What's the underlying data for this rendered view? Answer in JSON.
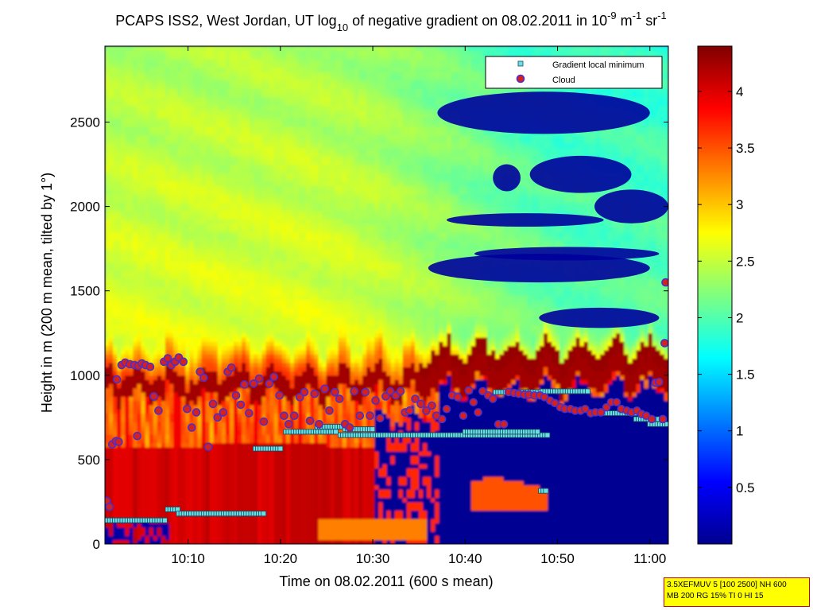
{
  "chart_data": {
    "type": "heatmap",
    "title": {
      "prefix": "PCAPS ISS2, West Jordan, UT log",
      "sub": "10",
      "middle": " of negative gradient on 08.02.2011 in 10",
      "exp1": "-9",
      "unit1": " m",
      "exp2": "-1",
      "unit2": " sr",
      "exp3": "-1"
    },
    "xlabel": "Time on 08.02.2011 (600 s mean)",
    "ylabel": "Height in m (200 m mean, tilted by 1°)",
    "x_ticks": [
      "10:10",
      "10:20",
      "10:30",
      "10:40",
      "10:50",
      "11:00"
    ],
    "x_tick_minutes": [
      10,
      20,
      30,
      40,
      50,
      60
    ],
    "xlim_minutes": [
      1,
      62
    ],
    "y_ticks": [
      0,
      500,
      1000,
      1500,
      2000,
      2500
    ],
    "ylim": [
      0,
      2950
    ],
    "colorbar": {
      "ticks": [
        0.5,
        1,
        1.5,
        2,
        2.5,
        3,
        3.5,
        4
      ],
      "range": [
        0,
        4.4
      ],
      "colormap": "jet"
    },
    "legend": {
      "position": "top-right",
      "entries": [
        "Gradient local minimum",
        "Cloud"
      ]
    },
    "series": [
      {
        "name": "Gradient local minimum",
        "marker": "square",
        "color": "#66e0e8",
        "edge": "#1a4a5a",
        "segments": [
          {
            "t0": 1.0,
            "t1": 7.5,
            "h": 140
          },
          {
            "t0": 7.8,
            "t1": 9.0,
            "h": 205
          },
          {
            "t0": 9.0,
            "t1": 18.2,
            "h": 180
          },
          {
            "t0": 17.3,
            "t1": 20.2,
            "h": 565
          },
          {
            "t0": 20.6,
            "t1": 26.0,
            "h": 665
          },
          {
            "t0": 24.0,
            "t1": 27.5,
            "h": 695
          },
          {
            "t0": 26.5,
            "t1": 49.0,
            "h": 645
          },
          {
            "t0": 27.0,
            "t1": 30.0,
            "h": 680
          },
          {
            "t0": 40.0,
            "t1": 48.0,
            "h": 665
          },
          {
            "t0": 43.3,
            "t1": 48.9,
            "h": 900
          },
          {
            "t0": 48.4,
            "t1": 53.5,
            "h": 905
          },
          {
            "t0": 53.5,
            "t1": 58.5,
            "h": 775
          },
          {
            "t0": 58.5,
            "t1": 61.0,
            "h": 740
          },
          {
            "t0": 60.0,
            "t1": 62.0,
            "h": 710
          },
          {
            "t0": 48.2,
            "t1": 48.8,
            "h": 315
          }
        ]
      },
      {
        "name": "Cloud",
        "marker": "circle",
        "color": "#d42020",
        "edge": "#4b2fc8",
        "points": [
          [
            1.2,
            255
          ],
          [
            1.5,
            220
          ],
          [
            1.8,
            590
          ],
          [
            2.2,
            610
          ],
          [
            2.5,
            605
          ],
          [
            2.8,
            1060
          ],
          [
            3.2,
            1075
          ],
          [
            3.7,
            1065
          ],
          [
            4.2,
            1060
          ],
          [
            4.6,
            1055
          ],
          [
            5.0,
            1070
          ],
          [
            5.4,
            1060
          ],
          [
            5.9,
            1050
          ],
          [
            4.5,
            640
          ],
          [
            2.3,
            975
          ],
          [
            6.3,
            875
          ],
          [
            6.8,
            790
          ],
          [
            7.4,
            1080
          ],
          [
            7.8,
            1100
          ],
          [
            8.2,
            1060
          ],
          [
            8.6,
            1080
          ],
          [
            9.0,
            1105
          ],
          [
            9.5,
            1080
          ],
          [
            9.9,
            800
          ],
          [
            10.4,
            690
          ],
          [
            10.9,
            780
          ],
          [
            11.3,
            1020
          ],
          [
            11.7,
            985
          ],
          [
            12.2,
            575
          ],
          [
            12.7,
            830
          ],
          [
            13.2,
            750
          ],
          [
            13.8,
            780
          ],
          [
            14.3,
            1020
          ],
          [
            14.7,
            1045
          ],
          [
            15.2,
            880
          ],
          [
            15.7,
            825
          ],
          [
            16.1,
            945
          ],
          [
            16.6,
            775
          ],
          [
            17.1,
            950
          ],
          [
            17.7,
            980
          ],
          [
            18.2,
            725
          ],
          [
            18.8,
            950
          ],
          [
            19.3,
            990
          ],
          [
            19.9,
            880
          ],
          [
            20.4,
            760
          ],
          [
            20.9,
            710
          ],
          [
            21.5,
            760
          ],
          [
            22.1,
            870
          ],
          [
            22.6,
            900
          ],
          [
            23.2,
            730
          ],
          [
            23.7,
            890
          ],
          [
            24.2,
            710
          ],
          [
            24.8,
            920
          ],
          [
            25.3,
            790
          ],
          [
            25.9,
            900
          ],
          [
            26.4,
            860
          ],
          [
            27.0,
            710
          ],
          [
            27.5,
            690
          ],
          [
            28.0,
            905
          ],
          [
            28.6,
            760
          ],
          [
            29.2,
            900
          ],
          [
            29.7,
            760
          ],
          [
            30.3,
            850
          ],
          [
            30.8,
            745
          ],
          [
            31.4,
            875
          ],
          [
            31.9,
            905
          ],
          [
            32.5,
            880
          ],
          [
            33.0,
            905
          ],
          [
            33.5,
            780
          ],
          [
            34.0,
            790
          ],
          [
            34.6,
            860
          ],
          [
            35.2,
            830
          ],
          [
            35.8,
            790
          ],
          [
            36.4,
            820
          ],
          [
            36.9,
            760
          ],
          [
            37.5,
            740
          ],
          [
            38.0,
            800
          ],
          [
            38.6,
            880
          ],
          [
            39.2,
            870
          ],
          [
            39.8,
            760
          ],
          [
            40.4,
            910
          ],
          [
            40.9,
            840
          ],
          [
            41.4,
            780
          ],
          [
            41.9,
            905
          ],
          [
            42.5,
            880
          ],
          [
            43.0,
            860
          ],
          [
            43.6,
            710
          ],
          [
            44.2,
            710
          ],
          [
            44.7,
            900
          ],
          [
            45.3,
            895
          ],
          [
            45.8,
            890
          ],
          [
            46.4,
            885
          ],
          [
            46.9,
            885
          ],
          [
            47.5,
            880
          ],
          [
            48.1,
            880
          ],
          [
            48.6,
            870
          ],
          [
            49.2,
            850
          ],
          [
            49.7,
            835
          ],
          [
            50.3,
            810
          ],
          [
            50.8,
            800
          ],
          [
            51.4,
            800
          ],
          [
            51.9,
            790
          ],
          [
            52.5,
            790
          ],
          [
            53.0,
            800
          ],
          [
            53.6,
            775
          ],
          [
            54.1,
            780
          ],
          [
            54.7,
            780
          ],
          [
            55.3,
            810
          ],
          [
            55.8,
            840
          ],
          [
            56.4,
            840
          ],
          [
            56.9,
            800
          ],
          [
            57.5,
            790
          ],
          [
            58.0,
            780
          ],
          [
            58.6,
            790
          ],
          [
            59.1,
            770
          ],
          [
            59.6,
            760
          ],
          [
            60.2,
            740
          ],
          [
            60.6,
            955
          ],
          [
            61.0,
            960
          ],
          [
            61.4,
            740
          ],
          [
            61.6,
            1190
          ],
          [
            61.7,
            1550
          ]
        ]
      }
    ]
  },
  "params_box": {
    "line1": "3.5XEFMUV 5 [100 2500] NH 600",
    "line2": "MB 200 RG 15% TI 0 HI 15"
  }
}
